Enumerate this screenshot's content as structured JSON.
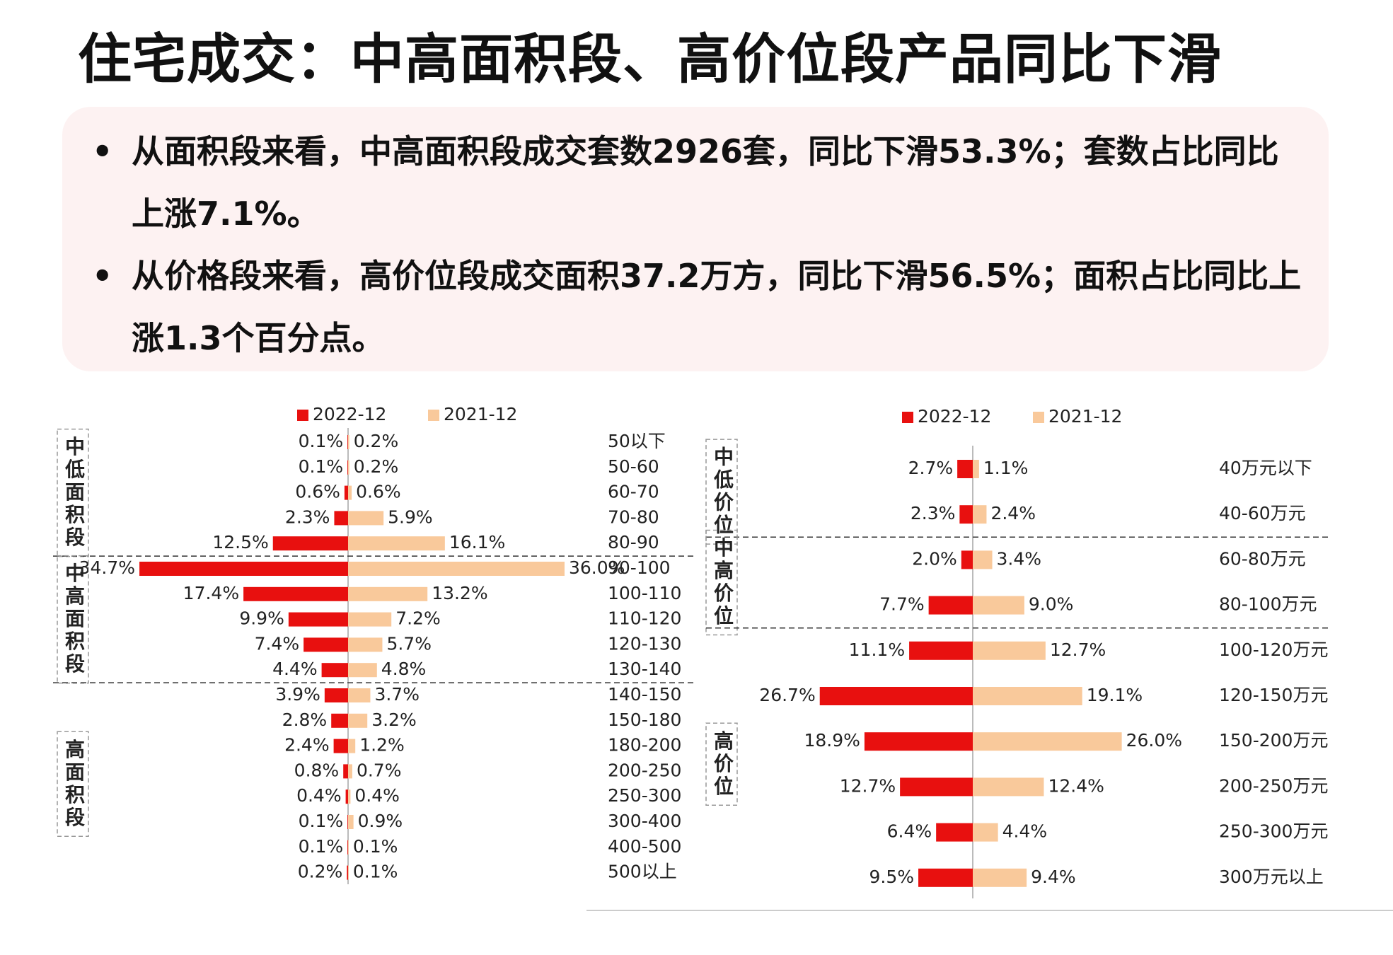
{
  "header": {
    "title": "住宅成交：中高面积段、高价位段产品同比下滑"
  },
  "bullets": [
    "从面积段来看，中高面积段成交套数2926套，同比下滑53.3%；套数占比同比上涨7.1%。",
    "从价格段来看，高价位段成交面积37.2万方，同比下滑56.5%；面积占比同比上涨1.3个百分点。"
  ],
  "chart_data": [
    {
      "type": "butterfly",
      "groups": [
        {
          "label": "中低面积段",
          "categories": [
            "50以下",
            "50-60",
            "60-70",
            "70-80",
            "80-90"
          ]
        },
        {
          "label": "中高面积段",
          "categories": [
            "90-100",
            "100-110",
            "110-120",
            "120-130",
            "130-140"
          ]
        },
        {
          "label": "高面积段",
          "categories": [
            "140-150",
            "150-180",
            "180-200",
            "200-250",
            "250-300",
            "300-400",
            "400-500",
            "500以上"
          ]
        }
      ],
      "series": [
        {
          "name": "2022-12",
          "color": "#e8100f",
          "values": [
            0.1,
            0.1,
            0.6,
            2.3,
            12.5,
            34.7,
            17.4,
            9.9,
            7.4,
            4.4,
            3.9,
            2.8,
            2.4,
            0.8,
            0.4,
            0.1,
            0.1,
            0.2
          ],
          "value_labels": [
            "0.1%",
            "0.1%",
            "0.6%",
            "2.3%",
            "12.5%",
            "34.7%",
            "17.4%",
            "9.9%",
            "7.4%",
            "4.4%",
            "3.9%",
            "2.8%",
            "2.4%",
            "0.8%",
            "0.4%",
            "0.1%",
            "0.1%",
            "0.2%"
          ]
        },
        {
          "name": "2021-12",
          "color": "#f9c99b",
          "values": [
            0.2,
            0.2,
            0.6,
            5.9,
            16.1,
            36.0,
            13.2,
            7.2,
            5.7,
            4.8,
            3.7,
            3.2,
            1.2,
            0.7,
            0.4,
            0.9,
            0.1,
            0.1
          ],
          "value_labels": [
            "0.2%",
            "0.2%",
            "0.6%",
            "5.9%",
            "16.1%",
            "36.0%",
            "13.2%",
            "7.2%",
            "5.7%",
            "4.8%",
            "3.7%",
            "3.2%",
            "1.2%",
            "0.7%",
            "0.4%",
            "0.9%",
            "0.1%",
            "0.1%"
          ]
        }
      ]
    },
    {
      "type": "butterfly",
      "groups": [
        {
          "label": "中低价位",
          "categories": [
            "40万元以下",
            "40-60万元"
          ]
        },
        {
          "label": "中高价位",
          "categories": [
            "60-80万元",
            "80-100万元"
          ]
        },
        {
          "label": "高价位",
          "categories": [
            "100-120万元",
            "120-150万元",
            "150-200万元",
            "200-250万元",
            "250-300万元",
            "300万元以上"
          ]
        }
      ],
      "series": [
        {
          "name": "2022-12",
          "color": "#e8100f",
          "values": [
            2.7,
            2.3,
            2.0,
            7.7,
            11.1,
            26.7,
            18.9,
            12.7,
            6.4,
            9.5
          ],
          "value_labels": [
            "2.7%",
            "2.3%",
            "2.0%",
            "7.7%",
            "11.1%",
            "26.7%",
            "18.9%",
            "12.7%",
            "6.4%",
            "9.5%"
          ]
        },
        {
          "name": "2021-12",
          "color": "#f9c99b",
          "values": [
            1.1,
            2.4,
            3.4,
            9.0,
            12.7,
            19.1,
            26.0,
            12.4,
            4.4,
            9.4
          ],
          "value_labels": [
            "1.1%",
            "2.4%",
            "3.4%",
            "9.0%",
            "12.7%",
            "19.1%",
            "26.0%",
            "12.4%",
            "4.4%",
            "9.4%"
          ]
        }
      ]
    }
  ]
}
